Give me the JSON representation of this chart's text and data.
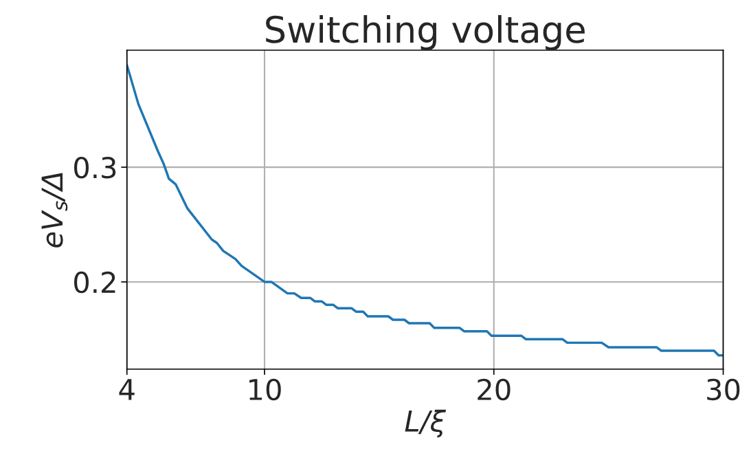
{
  "chart_data": {
    "type": "line",
    "title": "Switching voltage",
    "xlabel": "L/ξ",
    "ylabel": "eV$_{s}$/Δ",
    "x": [
      4,
      4.5,
      5.35,
      5.6,
      5.83,
      6.13,
      6.64,
      7.7,
      7.92,
      8.2,
      8.73,
      9.0,
      10,
      10.3,
      11.0,
      11.3,
      11.6,
      12.0,
      12.2,
      12.5,
      12.7,
      13.0,
      13.2,
      13.8,
      14.0,
      14.3,
      14.5,
      15.4,
      15.6,
      16.1,
      16.3,
      17.2,
      17.4,
      18.5,
      18.7,
      19.7,
      19.9,
      21.2,
      21.4,
      23.0,
      23.2,
      24.7,
      25.0,
      27.1,
      27.3,
      29.6,
      29.8,
      30
    ],
    "series": [
      {
        "color": "#1f77b4",
        "values": [
          0.389,
          0.355,
          0.314,
          0.303,
          0.29,
          0.285,
          0.264,
          0.237,
          0.234,
          0.227,
          0.22,
          0.214,
          0.2,
          0.2,
          0.19,
          0.19,
          0.186,
          0.186,
          0.183,
          0.183,
          0.18,
          0.18,
          0.177,
          0.177,
          0.174,
          0.174,
          0.17,
          0.17,
          0.167,
          0.167,
          0.164,
          0.164,
          0.16,
          0.16,
          0.157,
          0.157,
          0.153,
          0.153,
          0.15,
          0.15,
          0.147,
          0.147,
          0.143,
          0.143,
          0.14,
          0.14,
          0.136,
          0.136
        ]
      }
    ],
    "xlim": [
      4,
      30
    ],
    "xticks": [
      4,
      10,
      20,
      30
    ],
    "ylim": [
      0.124,
      0.402
    ],
    "yticks": [
      0.2,
      0.3
    ],
    "grid": true,
    "marker": "none",
    "line_style": "solid"
  }
}
